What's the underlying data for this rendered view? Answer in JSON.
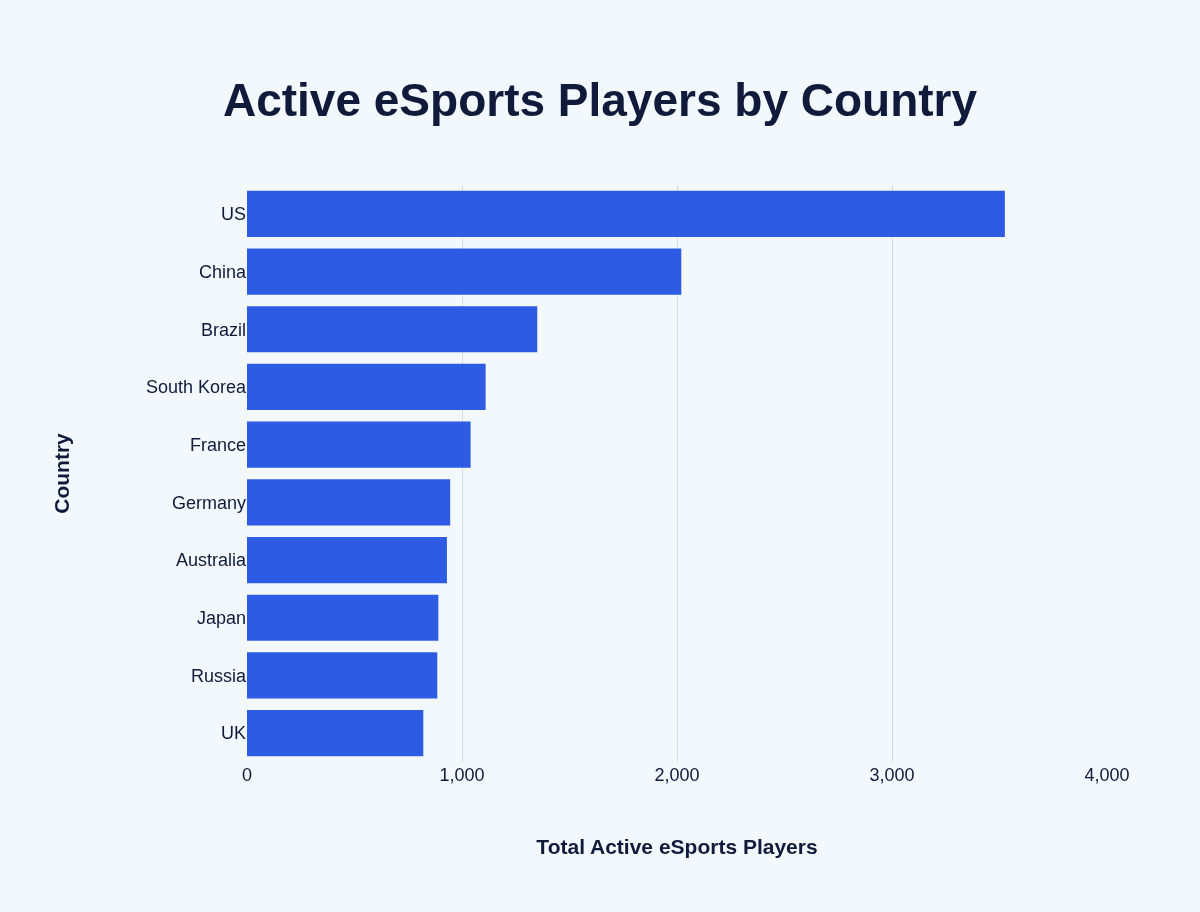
{
  "chart_data": {
    "type": "bar",
    "orientation": "horizontal",
    "title": "Active eSports Players by Country",
    "xlabel": "Total Active eSports Players",
    "ylabel": "Country",
    "categories": [
      "US",
      "China",
      "Brazil",
      "South Korea",
      "France",
      "Germany",
      "Australia",
      "Japan",
      "Russia",
      "UK"
    ],
    "values": [
      3525,
      2020,
      1350,
      1110,
      1040,
      945,
      930,
      890,
      885,
      820
    ],
    "color": "#2d5be3",
    "xlim": [
      0,
      4000
    ],
    "xticks": [
      0,
      {
        "value": 1000,
        "label": "1,000"
      },
      {
        "value": 2000,
        "label": "2,000"
      },
      {
        "value": 3000,
        "label": "3,000"
      },
      {
        "value": 4000,
        "label": "4,000"
      }
    ],
    "grid": "x"
  }
}
